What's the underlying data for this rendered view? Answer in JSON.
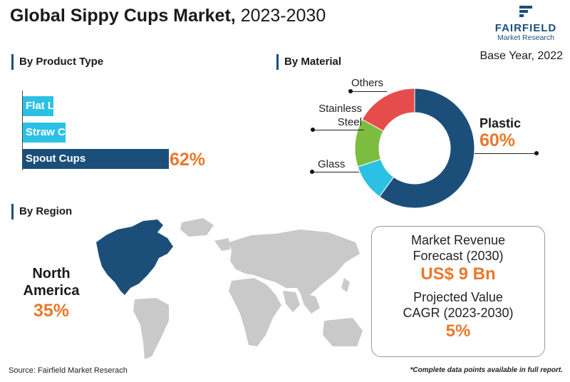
{
  "header": {
    "title_bold": "Global Sippy Cups Market,",
    "title_years": "2023-2030",
    "logo_word": "FAIRFIELD",
    "logo_sub": "Market Research",
    "base_year": "Base Year, 2022"
  },
  "product_type": {
    "section_title": "By Product Type",
    "highlight_label": "62%"
  },
  "material": {
    "section_title": "By Material",
    "plastic_label": "Plastic",
    "plastic_value": "60%",
    "others_label": "Others",
    "stainless_label_1": "Stainless",
    "stainless_label_2": "Steel",
    "glass_label": "Glass"
  },
  "region": {
    "section_title": "By Region",
    "highlight_line1": "North",
    "highlight_line2": "America",
    "highlight_value": "35%"
  },
  "summary": {
    "revenue_line1": "Market Revenue",
    "revenue_line2": "Forecast (2030)",
    "revenue_value": "US$ 9 Bn",
    "cagr_line1": "Projected Value",
    "cagr_line2": "CAGR (2023-2030)",
    "cagr_value": "5%"
  },
  "footer": {
    "source": "Source: Fairfield Market Reserach",
    "note": "*Complete data points available in full report."
  },
  "colors": {
    "navy": "#1b4f7a",
    "cyan": "#2cc1e4",
    "green": "#7cbd3f",
    "red": "#e74c4c",
    "orange": "#e8792b",
    "map_grey": "#c9c9c9"
  },
  "chart_data": [
    {
      "type": "bar",
      "orientation": "horizontal",
      "categories": [
        "Flat Lid",
        "Straw Cups",
        "Spout Cups"
      ],
      "values": [
        13,
        18,
        62
      ],
      "data_labels": [
        "",
        "",
        "62%"
      ],
      "colors": [
        "#2cc1e4",
        "#2cc1e4",
        "#1b4f7a"
      ]
    },
    {
      "type": "pie",
      "donut": true,
      "categories": [
        "Plastic",
        "Glass",
        "Stainless Steel",
        "Others"
      ],
      "values": [
        60,
        10,
        13,
        17
      ],
      "colors": [
        "#1b4f7a",
        "#2cc1e4",
        "#7cbd3f",
        "#e74c4c"
      ]
    }
  ]
}
